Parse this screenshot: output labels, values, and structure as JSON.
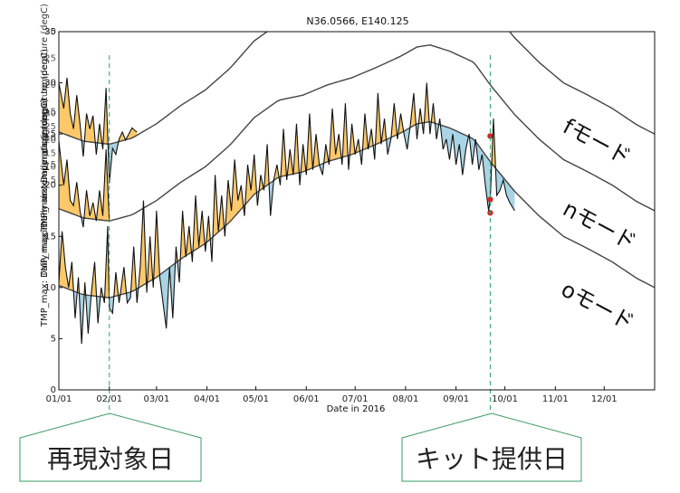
{
  "chart_data": {
    "type": "line",
    "title": "N36.0566, E140.125",
    "xlabel": "Date in 2016",
    "ylabel": "TMP_max: Daily maximum air temperature (degC)",
    "ylabel_overlap_1": "TMP_max: Daily maximum air temperature (degC)",
    "ylabel_overlap_2": "TMP_max: Daily maximum air temperature (degC)",
    "x_ticks": [
      "01/01",
      "02/01",
      "03/01",
      "04/01",
      "05/01",
      "06/01",
      "07/01",
      "08/01",
      "09/01",
      "10/01",
      "11/01",
      "12/01"
    ],
    "y_ticks": [
      "0",
      "5",
      "10",
      "15",
      "20",
      "25",
      "30",
      "35"
    ],
    "ghost_y_ticks": [
      {
        "label": "5",
        "y": 22
      },
      {
        "label": "10",
        "y": 24.6
      },
      {
        "label": "15",
        "y": 27.2
      },
      {
        "label": "20",
        "y": 29.8
      },
      {
        "label": "25",
        "y": 32.4
      },
      {
        "label": "30",
        "y": 35
      },
      {
        "label": "5",
        "y": 20.5
      },
      {
        "label": "10",
        "y": 21.8
      },
      {
        "label": "15",
        "y": 23.1
      },
      {
        "label": "20",
        "y": 24.4
      },
      {
        "label": "25",
        "y": 25.7
      },
      {
        "label": "30",
        "y": 27
      }
    ],
    "xlim": [
      0,
      366
    ],
    "ylim": [
      0,
      35
    ],
    "grid": false,
    "vlines": [
      {
        "day": 31,
        "label": "再現対象日",
        "color": "#2ca25f"
      },
      {
        "day": 265,
        "label": "キット提供日",
        "color": "#2ca25f"
      }
    ],
    "series": [
      {
        "name": "fモード",
        "offset": 15,
        "climatology": [
          [
            0,
            10.2
          ],
          [
            15,
            9.3
          ],
          [
            31,
            9.0
          ],
          [
            45,
            9.6
          ],
          [
            60,
            11.0
          ],
          [
            75,
            12.8
          ],
          [
            90,
            14.3
          ],
          [
            105,
            16.4
          ],
          [
            120,
            19.1
          ],
          [
            135,
            20.8
          ],
          [
            150,
            21.3
          ],
          [
            165,
            22.3
          ],
          [
            180,
            23.0
          ],
          [
            195,
            24.0
          ],
          [
            210,
            25.1
          ],
          [
            220,
            26.0
          ],
          [
            228,
            26.2
          ],
          [
            240,
            25.6
          ],
          [
            255,
            24.5
          ],
          [
            265,
            22.3
          ],
          [
            280,
            19.4
          ],
          [
            295,
            17.0
          ],
          [
            310,
            15.0
          ],
          [
            325,
            13.8
          ],
          [
            340,
            12.5
          ],
          [
            355,
            10.9
          ],
          [
            366,
            10.0
          ]
        ],
        "observed_until_day": 48,
        "observed": [
          [
            0,
            15.0
          ],
          [
            3,
            12.5
          ],
          [
            5,
            15.5
          ],
          [
            7,
            12.0
          ],
          [
            9,
            10.5
          ],
          [
            11,
            13.8
          ],
          [
            13,
            11.0
          ],
          [
            15,
            7.8
          ],
          [
            17,
            12.0
          ],
          [
            19,
            10.5
          ],
          [
            21,
            11.8
          ],
          [
            23,
            8.0
          ],
          [
            25,
            11.0
          ],
          [
            27,
            8.5
          ],
          [
            29,
            14.5
          ],
          [
            31,
            5.2
          ],
          [
            33,
            8.6
          ],
          [
            35,
            8.0
          ],
          [
            37,
            9.5
          ],
          [
            39,
            10.2
          ],
          [
            41,
            9.4
          ],
          [
            43,
            10.0
          ],
          [
            45,
            10.6
          ],
          [
            47,
            10.3
          ],
          [
            48,
            10.2
          ]
        ],
        "marker_day": 265,
        "marker_value": 9.8
      },
      {
        "name": "nモード",
        "offset": 7.5,
        "climatology": [
          [
            0,
            10.2
          ],
          [
            15,
            9.3
          ],
          [
            31,
            9.0
          ],
          [
            45,
            9.6
          ],
          [
            60,
            11.0
          ],
          [
            75,
            12.8
          ],
          [
            90,
            14.3
          ],
          [
            105,
            16.4
          ],
          [
            120,
            19.1
          ],
          [
            135,
            20.8
          ],
          [
            150,
            21.3
          ],
          [
            165,
            22.3
          ],
          [
            180,
            23.0
          ],
          [
            195,
            24.0
          ],
          [
            210,
            25.1
          ],
          [
            220,
            26.0
          ],
          [
            228,
            26.2
          ],
          [
            240,
            25.6
          ],
          [
            255,
            24.5
          ],
          [
            265,
            22.3
          ],
          [
            280,
            19.4
          ],
          [
            295,
            17.0
          ],
          [
            310,
            15.0
          ],
          [
            325,
            13.8
          ],
          [
            340,
            12.5
          ],
          [
            355,
            10.9
          ],
          [
            366,
            10.0
          ]
        ],
        "observed_until_day": 31,
        "observed": [
          [
            0,
            16.8
          ],
          [
            3,
            12.5
          ],
          [
            5,
            15.0
          ],
          [
            7,
            11.0
          ],
          [
            9,
            10.5
          ],
          [
            11,
            12.8
          ],
          [
            13,
            10.0
          ],
          [
            15,
            8.4
          ],
          [
            17,
            12.0
          ],
          [
            19,
            9.5
          ],
          [
            21,
            10.8
          ],
          [
            23,
            9.0
          ],
          [
            25,
            12.0
          ],
          [
            27,
            9.5
          ],
          [
            29,
            16.0
          ],
          [
            31,
            9.0
          ]
        ],
        "marker_day": 265,
        "marker_value": 9.8
      },
      {
        "name": "oモード",
        "offset": 0,
        "climatology": [
          [
            0,
            10.2
          ],
          [
            15,
            9.3
          ],
          [
            31,
            9.0
          ],
          [
            45,
            9.6
          ],
          [
            60,
            11.0
          ],
          [
            75,
            12.8
          ],
          [
            90,
            14.3
          ],
          [
            105,
            16.4
          ],
          [
            120,
            19.1
          ],
          [
            135,
            20.8
          ],
          [
            150,
            21.3
          ],
          [
            165,
            22.3
          ],
          [
            180,
            23.0
          ],
          [
            195,
            24.0
          ],
          [
            210,
            25.1
          ],
          [
            220,
            26.0
          ],
          [
            228,
            26.2
          ],
          [
            240,
            25.6
          ],
          [
            255,
            24.5
          ],
          [
            265,
            22.3
          ],
          [
            280,
            19.4
          ],
          [
            295,
            17.0
          ],
          [
            310,
            15.0
          ],
          [
            325,
            13.8
          ],
          [
            340,
            12.5
          ],
          [
            355,
            10.9
          ],
          [
            366,
            10.0
          ]
        ],
        "observed_until_day": 280,
        "observed": [
          [
            0,
            10.5
          ],
          [
            2,
            15.5
          ],
          [
            4,
            12.0
          ],
          [
            6,
            10.0
          ],
          [
            8,
            12.5
          ],
          [
            10,
            7.0
          ],
          [
            12,
            11.0
          ],
          [
            14,
            4.5
          ],
          [
            16,
            10.5
          ],
          [
            18,
            5.5
          ],
          [
            20,
            9.5
          ],
          [
            22,
            12.5
          ],
          [
            24,
            6.5
          ],
          [
            26,
            10.0
          ],
          [
            28,
            8.5
          ],
          [
            30,
            16.0
          ],
          [
            31,
            8.0
          ],
          [
            33,
            7.5
          ],
          [
            35,
            11.5
          ],
          [
            37,
            8.5
          ],
          [
            40,
            12.0
          ],
          [
            42,
            8.5
          ],
          [
            44,
            9.0
          ],
          [
            46,
            14.0
          ],
          [
            48,
            8.5
          ],
          [
            50,
            12.0
          ],
          [
            52,
            18.5
          ],
          [
            54,
            9.5
          ],
          [
            56,
            15.0
          ],
          [
            58,
            10.0
          ],
          [
            60,
            17.5
          ],
          [
            62,
            11.0
          ],
          [
            64,
            8.5
          ],
          [
            66,
            6.0
          ],
          [
            68,
            12.0
          ],
          [
            70,
            7.0
          ],
          [
            72,
            14.0
          ],
          [
            74,
            10.5
          ],
          [
            76,
            17.5
          ],
          [
            78,
            13.0
          ],
          [
            80,
            16.0
          ],
          [
            82,
            12.5
          ],
          [
            84,
            19.0
          ],
          [
            86,
            14.0
          ],
          [
            88,
            17.5
          ],
          [
            90,
            13.5
          ],
          [
            92,
            17.0
          ],
          [
            94,
            12.5
          ],
          [
            96,
            21.0
          ],
          [
            98,
            15.5
          ],
          [
            100,
            19.0
          ],
          [
            102,
            15.0
          ],
          [
            104,
            20.5
          ],
          [
            106,
            17.5
          ],
          [
            108,
            22.5
          ],
          [
            110,
            18.5
          ],
          [
            112,
            20.0
          ],
          [
            114,
            17.0
          ],
          [
            116,
            22.0
          ],
          [
            118,
            19.5
          ],
          [
            120,
            23.0
          ],
          [
            122,
            18.0
          ],
          [
            124,
            21.0
          ],
          [
            126,
            19.5
          ],
          [
            128,
            24.0
          ],
          [
            130,
            17.0
          ],
          [
            132,
            20.5
          ],
          [
            134,
            22.0
          ],
          [
            136,
            20.0
          ],
          [
            138,
            25.5
          ],
          [
            140,
            20.5
          ],
          [
            142,
            23.5
          ],
          [
            144,
            21.0
          ],
          [
            146,
            26.0
          ],
          [
            148,
            20.0
          ],
          [
            150,
            24.0
          ],
          [
            152,
            21.0
          ],
          [
            154,
            27.0
          ],
          [
            156,
            21.5
          ],
          [
            158,
            25.0
          ],
          [
            160,
            22.0
          ],
          [
            162,
            21.0
          ],
          [
            164,
            24.0
          ],
          [
            166,
            22.0
          ],
          [
            168,
            27.5
          ],
          [
            170,
            23.0
          ],
          [
            172,
            25.0
          ],
          [
            174,
            22.0
          ],
          [
            176,
            28.0
          ],
          [
            178,
            21.5
          ],
          [
            180,
            26.0
          ],
          [
            182,
            23.0
          ],
          [
            184,
            24.5
          ],
          [
            186,
            22.0
          ],
          [
            188,
            27.0
          ],
          [
            190,
            23.5
          ],
          [
            192,
            25.5
          ],
          [
            194,
            22.5
          ],
          [
            196,
            29.0
          ],
          [
            198,
            24.0
          ],
          [
            200,
            26.5
          ],
          [
            202,
            23.0
          ],
          [
            204,
            24.5
          ],
          [
            206,
            28.0
          ],
          [
            208,
            24.5
          ],
          [
            210,
            27.0
          ],
          [
            212,
            25.0
          ],
          [
            214,
            23.5
          ],
          [
            216,
            26.0
          ],
          [
            218,
            29.0
          ],
          [
            220,
            24.5
          ],
          [
            222,
            27.5
          ],
          [
            224,
            25.0
          ],
          [
            226,
            30.0
          ],
          [
            228,
            25.0
          ],
          [
            230,
            28.0
          ],
          [
            232,
            24.5
          ],
          [
            234,
            26.5
          ],
          [
            236,
            23.5
          ],
          [
            238,
            24.5
          ],
          [
            240,
            22.5
          ],
          [
            242,
            25.0
          ],
          [
            244,
            22.0
          ],
          [
            246,
            24.0
          ],
          [
            248,
            21.0
          ],
          [
            250,
            23.5
          ],
          [
            252,
            25.0
          ],
          [
            254,
            22.0
          ],
          [
            256,
            24.5
          ],
          [
            258,
            21.5
          ],
          [
            260,
            23.0
          ],
          [
            262,
            20.0
          ],
          [
            264,
            17.5
          ],
          [
            265,
            18.6
          ],
          [
            267,
            26.5
          ],
          [
            269,
            19.0
          ],
          [
            271,
            19.5
          ],
          [
            273,
            20.5
          ],
          [
            275,
            19.0
          ],
          [
            277,
            18.3
          ],
          [
            280,
            17.5
          ]
        ],
        "marker_day": 265,
        "marker_value": 18.6
      }
    ],
    "colors": {
      "warm_anomaly": "#fcc869",
      "cool_anomaly": "#a8d4e6",
      "observed_line": "#111111",
      "climatology_line": "#444444",
      "marker": "#d62728",
      "vline": "#2ca25f",
      "box_border": "#3a9a60"
    }
  }
}
